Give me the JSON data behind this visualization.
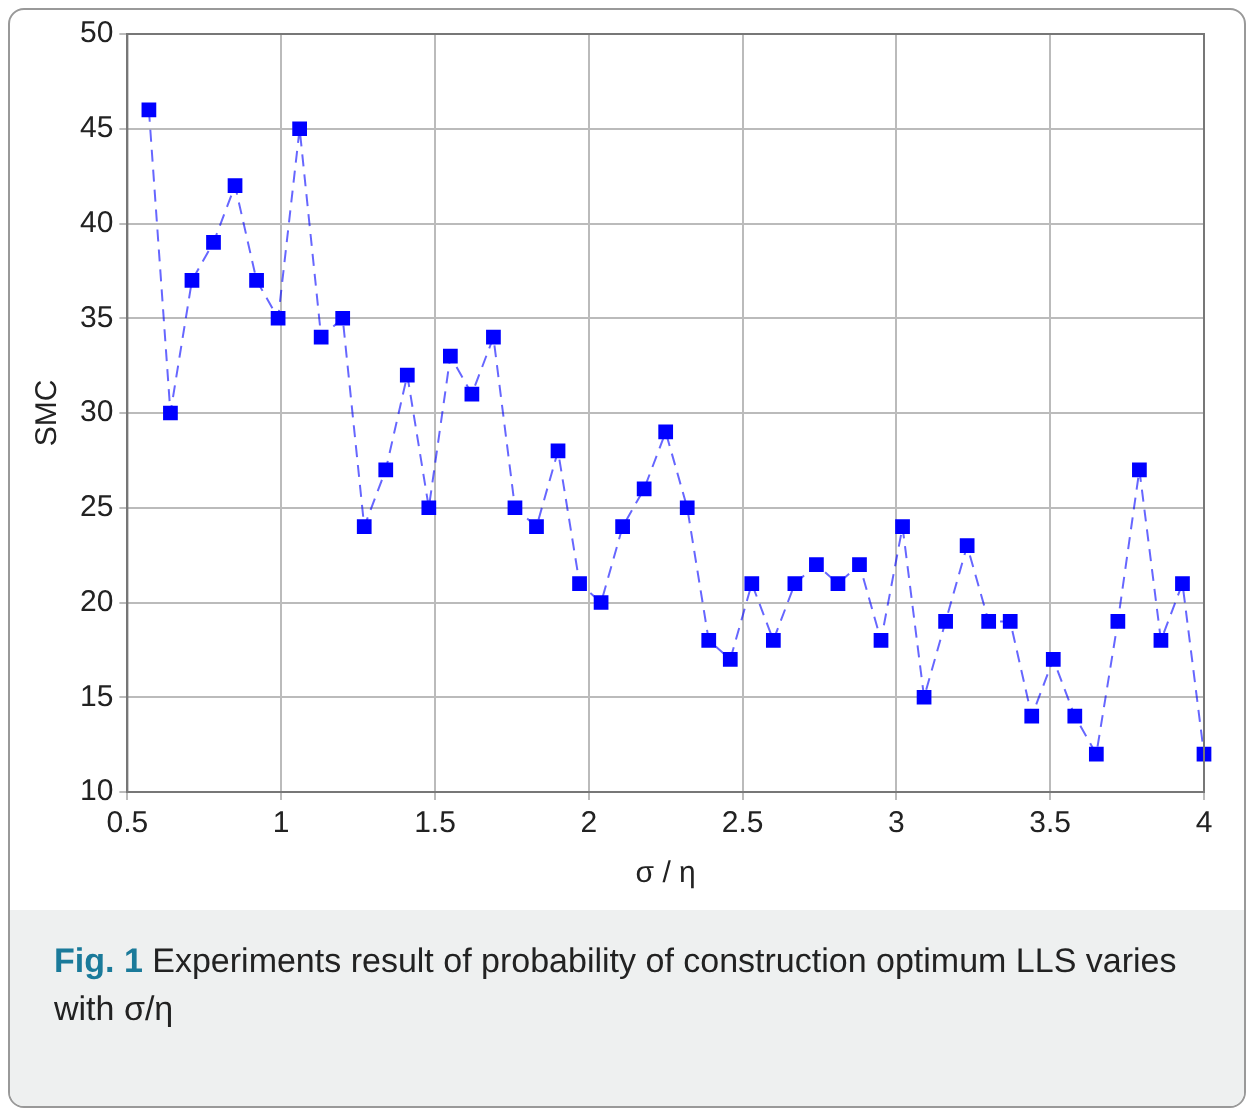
{
  "chart_data": {
    "type": "line",
    "xlabel": "σ / η",
    "ylabel": "SMC",
    "x": [
      0.57,
      0.64,
      0.71,
      0.78,
      0.85,
      0.92,
      0.99,
      1.06,
      1.13,
      1.2,
      1.27,
      1.34,
      1.41,
      1.48,
      1.55,
      1.62,
      1.69,
      1.76,
      1.83,
      1.9,
      1.97,
      2.04,
      2.11,
      2.18,
      2.25,
      2.32,
      2.39,
      2.46,
      2.53,
      2.6,
      2.67,
      2.74,
      2.81,
      2.88,
      2.95,
      3.02,
      3.09,
      3.16,
      3.23,
      3.3,
      3.37,
      3.44,
      3.51,
      3.58,
      3.65,
      3.72,
      3.79,
      3.86,
      3.93,
      4.0
    ],
    "series": [
      {
        "color": "#0000ff",
        "values": [
          46,
          30,
          37,
          39,
          42,
          37,
          35,
          45,
          34,
          35,
          24,
          27,
          32,
          25,
          33,
          31,
          34,
          25,
          24,
          28,
          21,
          20,
          24,
          26,
          29,
          25,
          18,
          17,
          21,
          18,
          21,
          22,
          21,
          22,
          18,
          24,
          15,
          19,
          23,
          19,
          19,
          14,
          17,
          14,
          12,
          19,
          27,
          18,
          21,
          12
        ]
      }
    ],
    "xlim": [
      0.5,
      4
    ],
    "xticks": [
      0.5,
      1,
      1.5,
      2,
      2.5,
      3,
      3.5,
      4
    ],
    "ylim": [
      10,
      50
    ],
    "yticks": [
      10,
      15,
      20,
      25,
      30,
      35,
      40,
      45,
      50
    ],
    "grid": true,
    "marker": "square",
    "line_style": "dashed",
    "legend": false,
    "annotations": [
      "Fig. 1 Experiments result of probability of construction optimum LLS varies with σ/η"
    ]
  }
}
